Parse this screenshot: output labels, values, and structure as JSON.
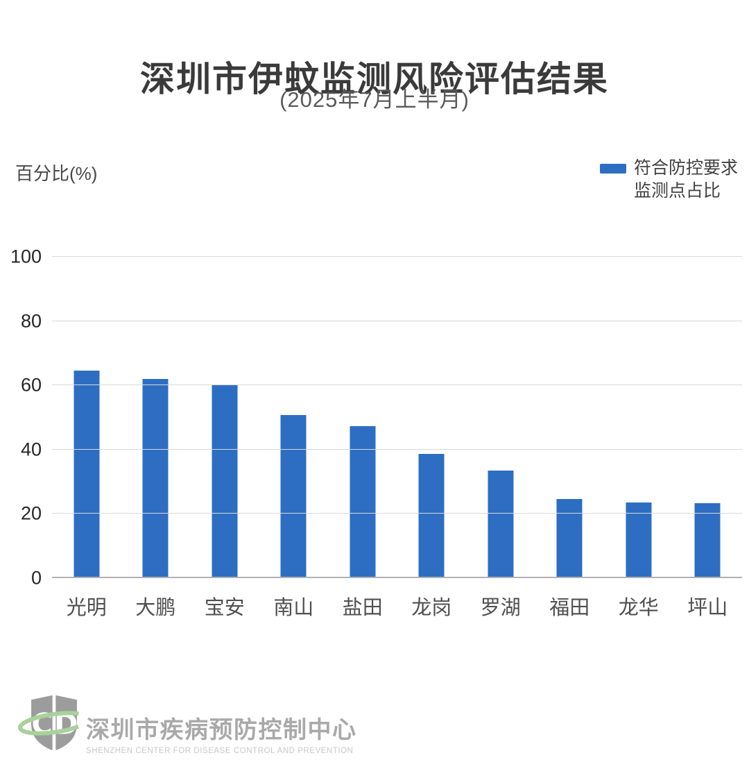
{
  "header": {
    "title": "深圳市伊蚊监测风险评估结果",
    "subtitle": "(2025年7月上半月)"
  },
  "axis": {
    "y_title": "百分比(%)"
  },
  "legend": {
    "line1": "符合防控要求",
    "line2": "监测点占比"
  },
  "chart_data": {
    "type": "bar",
    "title": "深圳市伊蚊监测风险评估结果",
    "subtitle": "(2025年7月上半月)",
    "ylabel": "百分比(%)",
    "xlabel": "",
    "categories": [
      "光明",
      "大鹏",
      "宝安",
      "南山",
      "盐田",
      "龙岗",
      "罗湖",
      "福田",
      "龙华",
      "坪山"
    ],
    "series": [
      {
        "name": "符合防控要求监测点占比",
        "values": [
          64.5,
          62.0,
          60.3,
          50.8,
          47.3,
          38.6,
          33.5,
          24.7,
          23.6,
          23.3
        ]
      }
    ],
    "ylim": [
      0,
      100
    ],
    "yticks": [
      0,
      20,
      40,
      60,
      80,
      100
    ],
    "grid": true,
    "legend_position": "top-right",
    "bar_color": "#2D6EC3"
  },
  "footer": {
    "logo": "shield-cd-logo",
    "org_cn": "深圳市疾病预防控制中心",
    "org_en": "SHENZHEN CENTER FOR DISEASE CONTROL AND PREVENTION"
  },
  "colors": {
    "bar": "#2D6EC3",
    "gridline": "#d9d9d9",
    "baseline": "#b2b2b2",
    "logo_gray": "#9c9c9c",
    "logo_green": "#a7d29a"
  }
}
